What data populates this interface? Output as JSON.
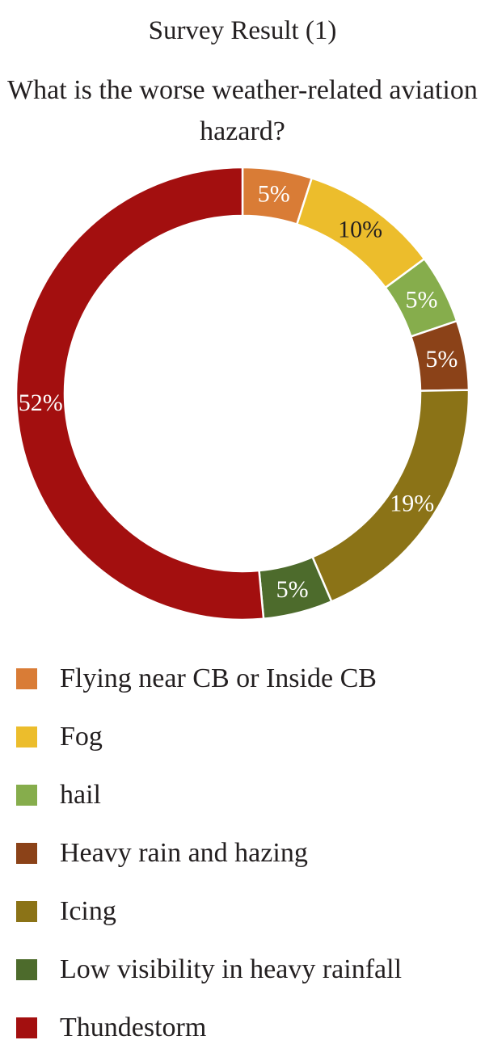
{
  "chart_data": {
    "type": "pie",
    "variant": "donut",
    "title": "Survey Result (1)",
    "subtitle": "What is the worse weather-related aviation hazard?",
    "slices": [
      {
        "label": "Flying near CB or Inside CB",
        "value": 5,
        "value_label": "5%",
        "color": "#d97c36"
      },
      {
        "label": "Fog",
        "value": 10,
        "value_label": "10%",
        "color": "#ecbd2c"
      },
      {
        "label": "hail",
        "value": 5,
        "value_label": "5%",
        "color": "#86ad4c"
      },
      {
        "label": "Heavy rain and hazing",
        "value": 5,
        "value_label": "5%",
        "color": "#8b4218"
      },
      {
        "label": "Icing",
        "value": 19,
        "value_label": "19%",
        "color": "#8b7317"
      },
      {
        "label": "Low visibility in heavy rainfall",
        "value": 5,
        "value_label": "5%",
        "color": "#4d6b2c"
      },
      {
        "label": "Thundestorm",
        "value": 52,
        "value_label": "52%",
        "color": "#a30f0f"
      }
    ],
    "legend_position": "bottom"
  }
}
